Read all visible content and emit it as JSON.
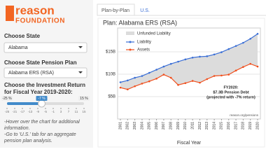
{
  "sidebar": {
    "logo_main": "reason",
    "logo_sub": "FOUNDATION",
    "state_label": "Choose State",
    "state_value": "Alabama",
    "plan_label": "Choose State Pension Plan",
    "plan_value": "Alabama ERS (RSA)",
    "return_label": "Choose the Investment Return for Fiscal Year 2019-2020:",
    "slider": {
      "min": {
        "value": -25,
        "label": "-25 %"
      },
      "max": {
        "value": 15,
        "label": "15 %"
      },
      "value": {
        "value": -7,
        "label": "-7 %"
      },
      "ticks": [
        -25,
        -21,
        -17,
        -13,
        -9,
        -5,
        -1,
        3,
        7,
        11,
        15
      ]
    },
    "notes": [
      "-Hover over the chart for additional information.",
      "-Go to 'U.S.' tab for an aggregate pension plan analysis."
    ]
  },
  "tabs": [
    "Plan-by-Plan",
    "U.S."
  ],
  "chart_data": {
    "type": "line",
    "title": "Plan: Alabama ERS (RSA)",
    "x": [
      2001,
      2002,
      2003,
      2004,
      2005,
      2006,
      2007,
      2008,
      2009,
      2010,
      2011,
      2012,
      2013,
      2014,
      2015,
      2016,
      2017,
      2018,
      2019,
      2020
    ],
    "area_name": "Unfunded Liability",
    "area_color": "#dcdcdc",
    "series": [
      {
        "name": "Liability",
        "color": "#3b6fd6",
        "values": [
          8.2,
          8.6,
          9.2,
          9.6,
          10.3,
          11.0,
          11.7,
          12.3,
          12.8,
          13.3,
          13.7,
          13.9,
          14.0,
          14.4,
          14.9,
          15.6,
          16.3,
          17.0,
          17.9,
          19.0
        ]
      },
      {
        "name": "Assets",
        "color": "#f0501e",
        "values": [
          7.0,
          6.6,
          7.3,
          7.9,
          8.4,
          9.0,
          9.9,
          9.2,
          7.6,
          8.0,
          8.5,
          8.1,
          8.9,
          9.6,
          9.7,
          9.9,
          10.8,
          11.6,
          12.3,
          11.7
        ]
      }
    ],
    "ylim": [
      0,
      20.3
    ],
    "yticks": [
      {
        "value": 5,
        "label": "$5B"
      },
      {
        "value": 10,
        "label": "$10B"
      },
      {
        "value": 15,
        "label": "$15B"
      }
    ],
    "grid": true,
    "annotation": [
      "FY2020:",
      "$7.3B Pension Debt",
      "(projected with -7% return)"
    ],
    "source": "reason.org/pensions",
    "xlabel": "Fiscal Year"
  }
}
